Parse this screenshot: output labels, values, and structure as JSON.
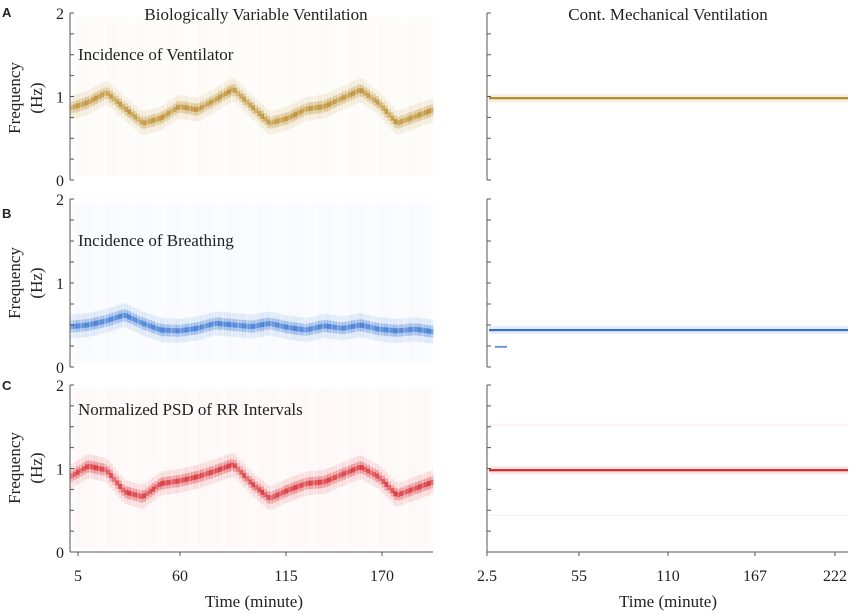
{
  "chart_data": {
    "type": "heatmap",
    "column_titles": [
      "Biologically Variable Ventilation",
      "Cont. Mechanical Ventilation"
    ],
    "xlabel": "Time (minute)",
    "ylabel": "Frequency (Hz)",
    "ylabel_parts": [
      "Frequency",
      "(Hz)"
    ],
    "ylim": [
      0,
      2
    ],
    "y_ticks": [
      "0",
      "1",
      "2"
    ],
    "x_ticks": {
      "left": {
        "values": [
          5,
          60,
          115,
          170
        ],
        "labels": [
          "5",
          "60",
          "115",
          "170"
        ],
        "range": [
          0,
          200
        ]
      },
      "right": {
        "values": [
          2.5,
          55,
          110,
          167,
          222
        ],
        "labels": [
          "2.5",
          "55",
          "110",
          "167",
          "222"
        ],
        "range": [
          0,
          224
        ]
      }
    },
    "colors": {
      "ventilator": "#b8861e",
      "breathing": "#2e6fd1",
      "rr": "#d61f26",
      "axis": "#555555"
    },
    "rows": [
      {
        "letter": "A",
        "label": "Incidence of Ventilator",
        "color_key": "ventilator",
        "left": {
          "style": "noisy",
          "t": [
            0,
            10,
            20,
            30,
            40,
            50,
            60,
            70,
            80,
            90,
            100,
            110,
            120,
            130,
            140,
            150,
            160,
            170,
            180,
            190,
            200
          ],
          "f": [
            0.86,
            0.93,
            1.05,
            0.86,
            0.68,
            0.74,
            0.88,
            0.84,
            0.96,
            1.09,
            0.88,
            0.68,
            0.74,
            0.85,
            0.88,
            0.98,
            1.08,
            0.92,
            0.68,
            0.76,
            0.84
          ]
        },
        "right": {
          "style": "line",
          "t": [
            0,
            224
          ],
          "f": [
            0.98,
            0.98
          ]
        }
      },
      {
        "letter": "B",
        "label": "Incidence of Breathing",
        "color_key": "breathing",
        "left": {
          "style": "noisy",
          "t": [
            0,
            10,
            20,
            30,
            40,
            50,
            60,
            70,
            80,
            90,
            100,
            110,
            120,
            130,
            140,
            150,
            160,
            170,
            180,
            190,
            200
          ],
          "f": [
            0.48,
            0.5,
            0.55,
            0.62,
            0.52,
            0.44,
            0.43,
            0.46,
            0.52,
            0.5,
            0.48,
            0.52,
            0.47,
            0.44,
            0.49,
            0.46,
            0.5,
            0.45,
            0.43,
            0.45,
            0.42
          ]
        },
        "right": {
          "style": "line",
          "t": [
            0,
            224
          ],
          "f": [
            0.44,
            0.44
          ]
        }
      },
      {
        "letter": "C",
        "label": "Normalized PSD of RR Intervals",
        "color_key": "rr",
        "left": {
          "style": "noisy",
          "t": [
            0,
            10,
            20,
            30,
            40,
            50,
            60,
            70,
            80,
            90,
            100,
            110,
            120,
            130,
            140,
            150,
            160,
            170,
            180,
            190,
            200
          ],
          "f": [
            0.9,
            1.03,
            0.98,
            0.72,
            0.66,
            0.82,
            0.85,
            0.9,
            0.97,
            1.05,
            0.82,
            0.64,
            0.74,
            0.82,
            0.84,
            0.93,
            1.02,
            0.9,
            0.68,
            0.76,
            0.84
          ]
        },
        "right": {
          "style": "line",
          "t": [
            0,
            224
          ],
          "f": [
            0.98,
            0.98
          ]
        }
      }
    ]
  }
}
